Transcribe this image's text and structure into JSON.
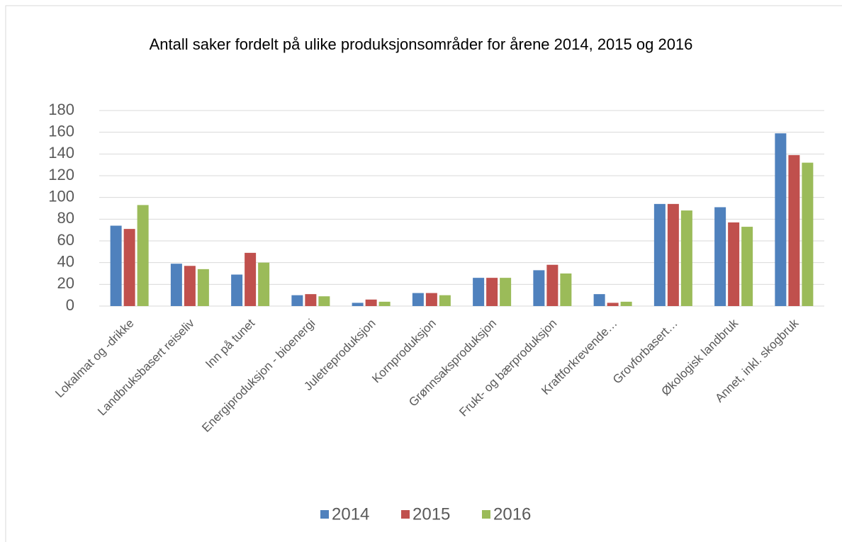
{
  "chart_data": {
    "type": "bar",
    "title": "Antall saker fordelt på ulike produksjonsområder for årene 2014, 2015 og 2016",
    "categories": [
      "Lokalmat og -drikke",
      "Landbruksbasert reiseliv",
      "Inn på tunet",
      "Energiproduksjon - bioenergi",
      "Juletreproduksjon",
      "Kornproduksjon",
      "Grønnsaksproduksjon",
      "Frukt- og bærproduksjon",
      "Kraftforkrevende…",
      "Grovforbasert…",
      "Økologisk landbruk",
      "Annet, inkl. skogbruk"
    ],
    "series": [
      {
        "name": "2014",
        "color": "#4f81bd",
        "values": [
          74,
          39,
          29,
          10,
          3,
          12,
          26,
          33,
          11,
          94,
          91,
          159
        ]
      },
      {
        "name": "2015",
        "color": "#c0504d",
        "values": [
          71,
          37,
          49,
          11,
          6,
          12,
          26,
          38,
          3,
          94,
          77,
          139
        ]
      },
      {
        "name": "2016",
        "color": "#9bbb59",
        "values": [
          93,
          34,
          40,
          9,
          4,
          10,
          26,
          30,
          4,
          88,
          73,
          132
        ]
      }
    ],
    "ylim": [
      0,
      180
    ],
    "yticks": [
      0,
      20,
      40,
      60,
      80,
      100,
      120,
      140,
      160,
      180
    ],
    "grid": true,
    "legend": "bottom"
  }
}
